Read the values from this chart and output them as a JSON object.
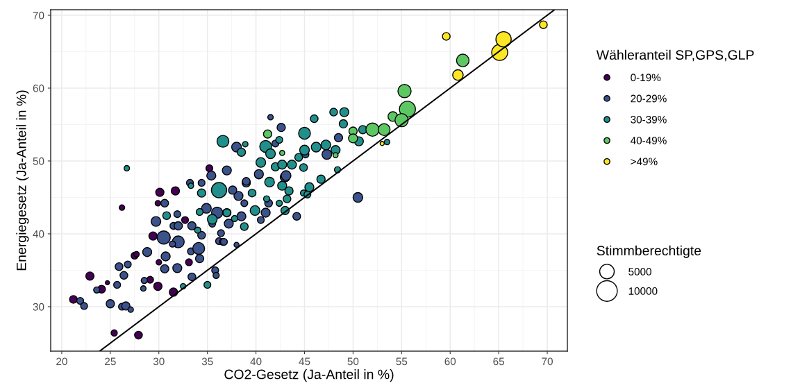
{
  "chart_data": {
    "type": "bubble",
    "xlabel": "CO2-Gesetz (Ja-Anteil in %)",
    "ylabel": "Energiegesetz (Ja-Anteil in %)",
    "legend_title": "Wähleranteil SP,GPS,GLP",
    "annotations": [
      "Stimmberechtigte"
    ],
    "size_legend": [
      5000,
      10000
    ],
    "xlim": [
      18.86,
      72.07
    ],
    "ylim": [
      23.9,
      70.76
    ],
    "xticks": [
      20,
      25,
      30,
      35,
      40,
      45,
      50,
      55,
      60,
      65,
      70
    ],
    "yticks": [
      30,
      40,
      50,
      60,
      70
    ],
    "grid": true,
    "legend": "right",
    "marker": "circle",
    "series": [
      {
        "name": "0-19%",
        "color": "#440154",
        "x": [
          21.2,
          22.9,
          24.1,
          24.7,
          25.4,
          26.2,
          27.5,
          27.7,
          27.9,
          29.1,
          29.9,
          29.4,
          30.1,
          31.7,
          29.9,
          32.7,
          30.0,
          33.1,
          31.5,
          35.2
        ],
        "values": [
          31.0,
          34.2,
          32.4,
          33.3,
          26.4,
          43.6,
          37.0,
          37.2,
          26.1,
          33.7,
          32.8,
          39.7,
          45.7,
          45.9,
          44.2,
          41.9,
          36.1,
          36.1,
          32.0,
          49.0
        ],
        "sizes": [
          1400,
          1600,
          1400,
          400,
          900,
          700,
          1100,
          700,
          1400,
          1100,
          1600,
          1600,
          1600,
          1600,
          700,
          1100,
          700,
          1100,
          1600,
          1100
        ]
      },
      {
        "name": "20-29%",
        "color": "#3b528b",
        "x": [
          21.9,
          22.3,
          23.6,
          25.0,
          25.7,
          25.9,
          26.8,
          26.4,
          26.2,
          26.6,
          27.1,
          28.8,
          28.4,
          28.5,
          29.7,
          30.5,
          30.7,
          30.6,
          31.9,
          32.0,
          31.4,
          31.5,
          32.0,
          31.9,
          30.6,
          33.4,
          34.4,
          33.3,
          34.1,
          34.2,
          33.4,
          35.8,
          35.9,
          36.2,
          36.6,
          36.4,
          33.2,
          34.4,
          35.4,
          34.9,
          36.0,
          35.5,
          50.5,
          44.2,
          38.0,
          36.7,
          37.2,
          38.5,
          40.5,
          41.0,
          38.8,
          38.2,
          37.6,
          39.0,
          43.0,
          40.3,
          41.3,
          41.5,
          42.6,
          38.0,
          47.3,
          48.5,
          37.0,
          40.3,
          42.0,
          43.1,
          45.1,
          39.0
        ],
        "values": [
          30.8,
          30.1,
          32.3,
          30.4,
          33.0,
          35.5,
          35.8,
          34.3,
          30.0,
          30.1,
          29.6,
          37.5,
          32.5,
          33.6,
          41.7,
          39.5,
          36.9,
          35.2,
          35.3,
          38.9,
          38.6,
          41.1,
          41.1,
          42.7,
          44.2,
          41.1,
          39.8,
          37.6,
          38.0,
          36.6,
          34.1,
          35.0,
          34.3,
          39.0,
          38.9,
          40.1,
          47.0,
          47.0,
          48.0,
          43.5,
          42.9,
          41.4,
          45.0,
          42.4,
          38.5,
          38.9,
          41.4,
          42.4,
          41.9,
          42.9,
          44.2,
          45.2,
          46.0,
          47.0,
          47.8,
          48.1,
          44.2,
          56.0,
          54.6,
          51.9,
          50.9,
          53.2,
          48.7,
          48.2,
          52.4,
          48.0,
          50.9,
          47.2
        ],
        "sizes": [
          1100,
          1100,
          900,
          1600,
          1100,
          1400,
          1100,
          1400,
          1100,
          1600,
          700,
          1900,
          700,
          900,
          2200,
          4100,
          1900,
          1600,
          1900,
          3300,
          900,
          1100,
          1600,
          1100,
          1400,
          1600,
          1400,
          1100,
          3300,
          1600,
          1400,
          1100,
          900,
          1100,
          1100,
          1100,
          1100,
          1100,
          1900,
          2200,
          2900,
          1100,
          2200,
          1400,
          600,
          1100,
          1900,
          1900,
          1100,
          1900,
          1100,
          1900,
          1600,
          1600,
          2200,
          1600,
          1400,
          700,
          1600,
          2200,
          2200,
          1600,
          1900,
          1900,
          1100,
          2200,
          1100,
          1400
        ]
      },
      {
        "name": "30-39%",
        "color": "#21908c",
        "x": [
          30.8,
          34.0,
          32.5,
          35.0,
          34.4,
          36.2,
          34.2,
          35.5,
          37.0,
          33.3,
          36.6,
          26.7,
          41.4,
          39.6,
          39.9,
          41.1,
          42.4,
          43.0,
          42.7,
          43.4,
          43.2,
          44.9,
          45.5,
          46.7,
          45.3,
          38.8,
          37.0,
          37.8,
          38.9,
          38.5,
          41.0,
          41.5,
          40.5,
          42.4,
          45.0,
          46.0,
          48.0,
          49.1,
          49.0,
          45.0,
          46.2,
          47.2,
          48.2,
          42.0,
          42.7,
          43.7,
          44.4,
          44.9,
          48.4,
          50.6,
          51.0,
          53.5
        ],
        "values": [
          42.5,
          40.5,
          32.8,
          33.0,
          45.6,
          46.0,
          43.0,
          42.0,
          42.9,
          46.6,
          52.7,
          49.0,
          47.1,
          45.6,
          43.2,
          44.8,
          44.2,
          43.2,
          46.6,
          45.9,
          44.8,
          45.6,
          46.4,
          47.5,
          45.4,
          41.0,
          42.9,
          42.1,
          52.3,
          51.2,
          52.0,
          51.0,
          49.8,
          52.9,
          53.8,
          55.8,
          56.7,
          56.7,
          55.1,
          51.5,
          51.9,
          52.2,
          51.5,
          49.2,
          49.5,
          49.5,
          50.5,
          49.1,
          48.8,
          52.7,
          54.3,
          52.6
        ],
        "sizes": [
          1400,
          900,
          700,
          1100,
          1600,
          5500,
          1100,
          2200,
          1600,
          700,
          3300,
          700,
          2200,
          1400,
          2200,
          900,
          900,
          1600,
          1900,
          1600,
          1400,
          900,
          1900,
          1600,
          1100,
          1400,
          1400,
          900,
          700,
          1600,
          3300,
          2200,
          2200,
          1100,
          3300,
          1400,
          1400,
          1900,
          1600,
          2200,
          2200,
          2200,
          1900,
          1600,
          1900,
          1900,
          1400,
          1400,
          900,
          1900,
          1600,
          700
        ]
      },
      {
        "name": "40-49%",
        "color": "#5dc863",
        "x": [
          41.2,
          42.7,
          48.2,
          50.0,
          50.0,
          52.0,
          53.2,
          55.3,
          55.6,
          54.1,
          55.0,
          61.3
        ],
        "values": [
          53.7,
          51.1,
          50.8,
          54.1,
          53.1,
          54.3,
          54.3,
          59.6,
          57.1,
          56.1,
          55.6,
          63.8
        ],
        "sizes": [
          1600,
          600,
          600,
          1600,
          1900,
          4100,
          3300,
          4100,
          6000,
          2200,
          4100,
          3700
        ]
      },
      {
        "name": ">49%",
        "color": "#fde725",
        "x": [
          59.6,
          60.8,
          65.1,
          65.5,
          69.6,
          53.0
        ],
        "values": [
          67.1,
          61.8,
          64.9,
          66.7,
          68.7,
          52.4
        ],
        "sizes": [
          1400,
          2600,
          6000,
          5500,
          1400,
          400
        ]
      },
      {
        "type": "line",
        "marker": "none",
        "color": "#000000",
        "x": [
          23.9,
          70.7
        ],
        "values": [
          23.9,
          70.7
        ]
      }
    ]
  }
}
